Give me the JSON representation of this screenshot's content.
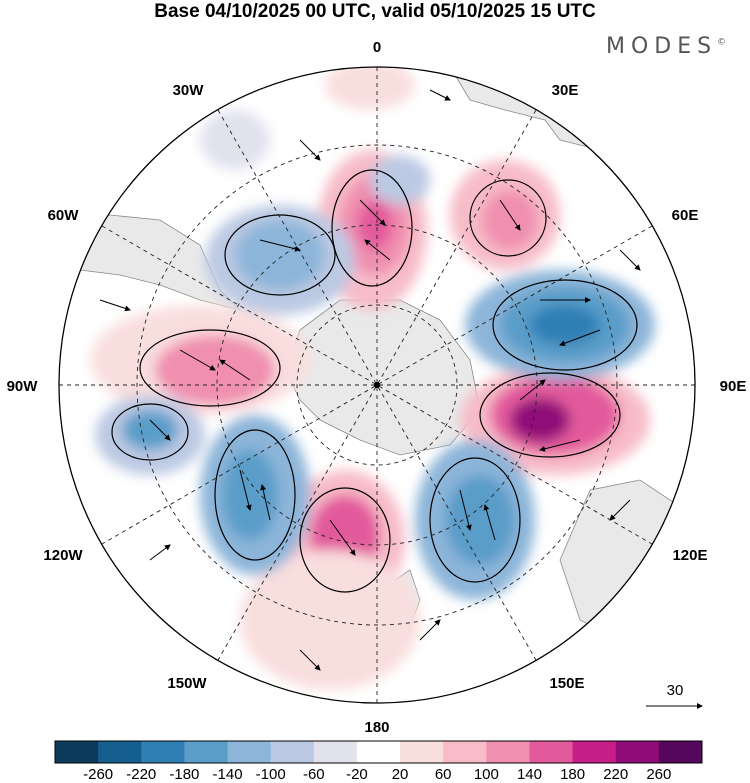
{
  "header": {
    "title": "Base 04/10/2025 00 UTC, valid 05/10/2025 15 UTC",
    "brand": "MODES"
  },
  "map": {
    "projection": "south-polar-stereographic",
    "longitude_labels": {
      "top": "0",
      "top_right": "30E",
      "right_upper": "60E",
      "right": "90E",
      "right_lower": "120E",
      "bottom_right": "150E",
      "bottom": "180",
      "bottom_left": "150W",
      "left_lower": "120W",
      "left": "90W",
      "left_upper": "60W",
      "top_left": "30W"
    },
    "reference_vector": {
      "label": "30"
    }
  },
  "colorbar": {
    "ticks": [
      "-260",
      "-220",
      "-180",
      "-140",
      "-100",
      "-60",
      "-20",
      "20",
      "60",
      "100",
      "140",
      "180",
      "220",
      "260"
    ],
    "colors": [
      "#0d3b5c",
      "#155f8e",
      "#2f7fb5",
      "#5a9dc9",
      "#8cb5d9",
      "#bcc9e3",
      "#e2e2ef",
      "#ffffff",
      "#f9dede",
      "#f7bcc8",
      "#f08fb0",
      "#e35a9c",
      "#c81e8a",
      "#8f0c78",
      "#55075e"
    ]
  },
  "icons": [
    "north-arrow-free",
    "wind-vector-icon"
  ]
}
